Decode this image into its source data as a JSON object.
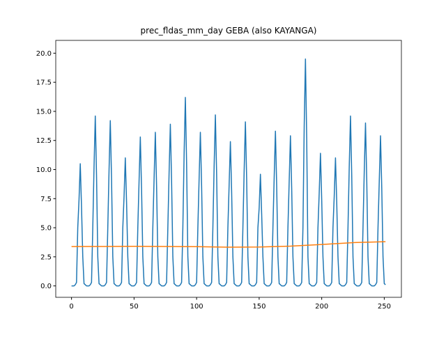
{
  "chart_data": {
    "type": "line",
    "title": "prec_fldas_mm_day GEBA (also KAYANGA)",
    "x": [
      0,
      1,
      2,
      3,
      4,
      5,
      6,
      7,
      8,
      9,
      10,
      11,
      12,
      13,
      14,
      15,
      16,
      17,
      18,
      19,
      20,
      21,
      22,
      23,
      24,
      25,
      26,
      27,
      28,
      29,
      30,
      31,
      32,
      33,
      34,
      35,
      36,
      37,
      38,
      39,
      40,
      41,
      42,
      43,
      44,
      45,
      46,
      47,
      48,
      49,
      50,
      51,
      52,
      53,
      54,
      55,
      56,
      57,
      58,
      59,
      60,
      61,
      62,
      63,
      64,
      65,
      66,
      67,
      68,
      69,
      70,
      71,
      72,
      73,
      74,
      75,
      76,
      77,
      78,
      79,
      80,
      81,
      82,
      83,
      84,
      85,
      86,
      87,
      88,
      89,
      90,
      91,
      92,
      93,
      94,
      95,
      96,
      97,
      98,
      99,
      100,
      101,
      102,
      103,
      104,
      105,
      106,
      107,
      108,
      109,
      110,
      111,
      112,
      113,
      114,
      115,
      116,
      117,
      118,
      119,
      120,
      121,
      122,
      123,
      124,
      125,
      126,
      127,
      128,
      129,
      130,
      131,
      132,
      133,
      134,
      135,
      136,
      137,
      138,
      139,
      140,
      141,
      142,
      143,
      144,
      145,
      146,
      147,
      148,
      149,
      150,
      151,
      152,
      153,
      154,
      155,
      156,
      157,
      158,
      159,
      160,
      161,
      162,
      163,
      164,
      165,
      166,
      167,
      168,
      169,
      170,
      171,
      172,
      173,
      174,
      175,
      176,
      177,
      178,
      179,
      180,
      181,
      182,
      183,
      184,
      185,
      186,
      187,
      188,
      189,
      190,
      191,
      192,
      193,
      194,
      195,
      196,
      197,
      198,
      199,
      200,
      201,
      202,
      203,
      204,
      205,
      206,
      207,
      208,
      209,
      210,
      211,
      212,
      213,
      214,
      215,
      216,
      217,
      218,
      219,
      220,
      221,
      222,
      223,
      224,
      225,
      226,
      227,
      228,
      229,
      230,
      231,
      232,
      233,
      234,
      235,
      236,
      237,
      238,
      239,
      240,
      241,
      242,
      243,
      244,
      245,
      246,
      247,
      248,
      249,
      250,
      251
    ],
    "series": [
      {
        "color": "#1f77b4",
        "values": [
          0,
          0,
          0,
          0.1,
          0.3,
          5,
          7.4,
          10.5,
          6.8,
          2.5,
          0.2,
          0.1,
          0,
          0,
          0,
          0.1,
          0.3,
          5,
          10.2,
          14.6,
          9.5,
          2.5,
          0.2,
          0.1,
          0,
          0,
          0,
          0.1,
          0.3,
          5,
          9.9,
          14.2,
          9.2,
          2.5,
          0.2,
          0.1,
          0,
          0,
          0,
          0.1,
          0.3,
          5,
          7.7,
          11.0,
          7.2,
          2.5,
          0.2,
          0.1,
          0,
          0,
          0,
          0.1,
          0.3,
          5,
          9.0,
          12.8,
          8.3,
          2.5,
          0.2,
          0.1,
          0,
          0,
          0,
          0.1,
          0.3,
          5,
          9.2,
          13.2,
          8.6,
          2.5,
          0.2,
          0.1,
          0,
          0,
          0,
          0.1,
          0.3,
          5,
          9.7,
          13.9,
          9.0,
          2.5,
          0.2,
          0.1,
          0,
          0,
          0,
          0.1,
          0.3,
          5,
          11.3,
          16.2,
          10.5,
          2.5,
          0.2,
          0.1,
          0,
          0,
          0,
          0.1,
          0.3,
          5,
          9.2,
          13.2,
          8.6,
          2.5,
          0.2,
          0.1,
          0,
          0,
          0,
          0.1,
          0.3,
          5,
          10.3,
          14.7,
          9.6,
          2.5,
          0.2,
          0.1,
          0,
          0,
          0,
          0.1,
          0.3,
          5,
          8.7,
          12.4,
          8.1,
          2.5,
          0.2,
          0.1,
          0,
          0,
          0,
          0.1,
          0.3,
          5,
          9.9,
          14.1,
          9.2,
          2.5,
          0.2,
          0.1,
          0,
          0,
          0,
          0.1,
          0.3,
          5,
          6.7,
          9.6,
          6.2,
          2.5,
          0.2,
          0.1,
          0,
          0,
          0,
          0.1,
          0.3,
          5,
          9.3,
          13.3,
          8.6,
          2.5,
          0.2,
          0.1,
          0,
          0,
          0,
          0.1,
          0.3,
          5,
          9.0,
          12.9,
          8.4,
          2.5,
          0.2,
          0.1,
          0,
          0,
          0,
          0.1,
          0.3,
          5,
          13.7,
          19.5,
          12.7,
          2.5,
          0.2,
          0.1,
          0,
          0,
          0,
          0.1,
          0.3,
          5,
          8.0,
          11.4,
          7.4,
          2.5,
          0.2,
          0.1,
          0,
          0,
          0,
          0.1,
          0.3,
          5,
          7.7,
          11.0,
          7.2,
          2.5,
          0.2,
          0.1,
          0,
          0,
          0,
          0.1,
          0.3,
          5,
          10.2,
          14.6,
          9.5,
          2.5,
          0.2,
          0.1,
          0,
          0,
          0,
          0.1,
          0.3,
          5,
          9.8,
          14.0,
          9.1,
          2.5,
          0.2,
          0.1,
          0,
          0,
          0,
          0.1,
          0.3,
          5,
          9.0,
          12.9,
          8.4,
          2.5,
          0.2,
          0.1
        ]
      },
      {
        "color": "#ff7f0e",
        "x": [
          0,
          25,
          50,
          75,
          100,
          125,
          150,
          175,
          200,
          225,
          251
        ],
        "values": [
          3.38,
          3.39,
          3.4,
          3.39,
          3.37,
          3.33,
          3.34,
          3.42,
          3.56,
          3.72,
          3.8
        ]
      }
    ],
    "xlim": [
      -12.6,
      263.7
    ],
    "ylim": [
      -0.98,
      21.1
    ],
    "xticks": [
      0,
      50,
      100,
      150,
      200,
      250
    ],
    "yticks": [
      {
        "value": 0,
        "label": "0.0"
      },
      {
        "value": 2.5,
        "label": "2.5"
      },
      {
        "value": 5,
        "label": "5.0"
      },
      {
        "value": 7.5,
        "label": "7.5"
      },
      {
        "value": 10,
        "label": "10.0"
      },
      {
        "value": 12.5,
        "label": "12.5"
      },
      {
        "value": 15,
        "label": "15.0"
      },
      {
        "value": 17.5,
        "label": "17.5"
      },
      {
        "value": 20,
        "label": "20.0"
      }
    ]
  }
}
